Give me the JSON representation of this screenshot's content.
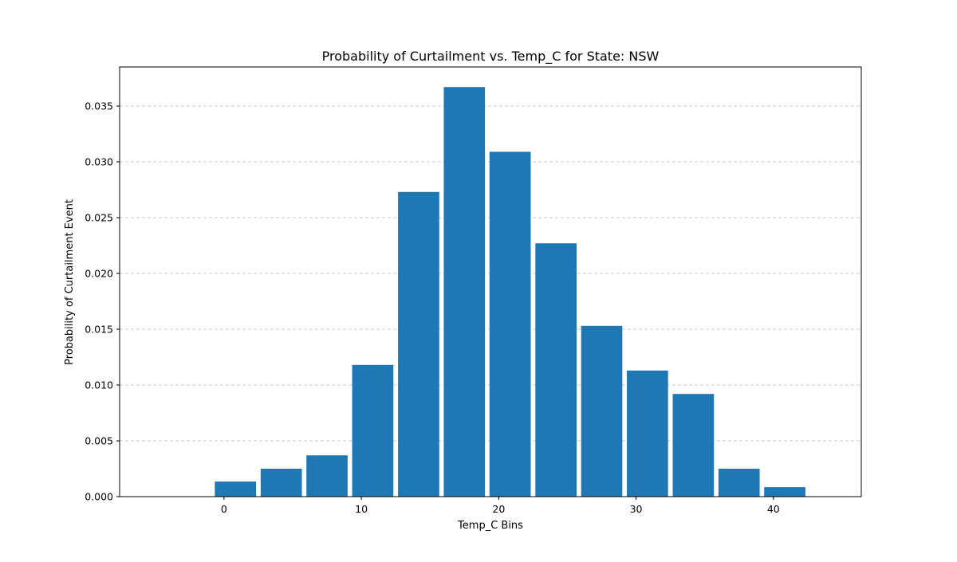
{
  "chart_data": {
    "type": "bar",
    "title": "Probability of Curtailment vs. Temp_C for State: NSW",
    "xlabel": "Temp_C Bins",
    "ylabel": "Probability of Curtailment Event",
    "x_centers": [
      0.83,
      4.17,
      7.5,
      10.83,
      14.17,
      17.5,
      20.83,
      24.17,
      27.5,
      30.83,
      34.17,
      37.5,
      40.83
    ],
    "values": [
      0.00135,
      0.0025,
      0.0037,
      0.0118,
      0.0273,
      0.0367,
      0.0309,
      0.0227,
      0.0153,
      0.0113,
      0.0092,
      0.0025,
      0.00085
    ],
    "bar_width": 3.0,
    "xlim": [
      -7.6,
      46.4
    ],
    "ylim": [
      0,
      0.0385
    ],
    "xticks": [
      0,
      10,
      20,
      30,
      40
    ],
    "xtick_labels": [
      "0",
      "10",
      "20",
      "30",
      "40"
    ],
    "yticks": [
      0.0,
      0.005,
      0.01,
      0.015,
      0.02,
      0.025,
      0.03,
      0.035
    ],
    "ytick_labels": [
      "0.000",
      "0.005",
      "0.010",
      "0.015",
      "0.020",
      "0.025",
      "0.030",
      "0.035"
    ],
    "grid": "y-dashed",
    "colors": {
      "bar": "#1f77b4",
      "grid": "#c8c8c8",
      "axis": "#000000"
    }
  }
}
